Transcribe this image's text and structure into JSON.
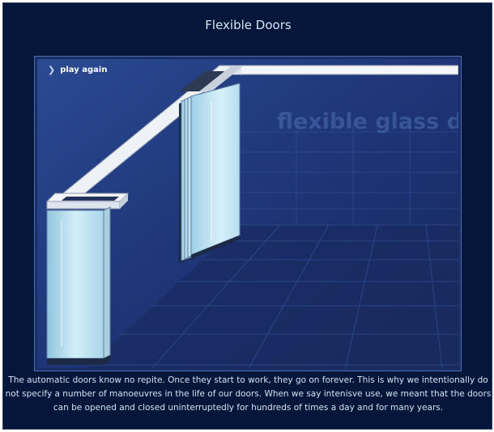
{
  "title": "Flexible Doors",
  "animation": {
    "play_again_label": "play again",
    "play_icon": "chevron-right-icon",
    "watermark_text": "flexible glass doors"
  },
  "description": "The automatic doors know no repite. Once they start to work, they go on forever. This is why we intentionally do not specify a number of manoeuvres in the life of our doors. When we say intenisve use, we meant that the doors can be opened and closed uninterruptedly for hundreds of times a day and for many years.",
  "colors": {
    "page_background": "#04163a",
    "stage_background": "#1a2d64",
    "glass": "#bfe3f0",
    "rail": "#f2f4f7",
    "title_text": "#d4e6f5",
    "description_text": "#d5e2f3"
  }
}
